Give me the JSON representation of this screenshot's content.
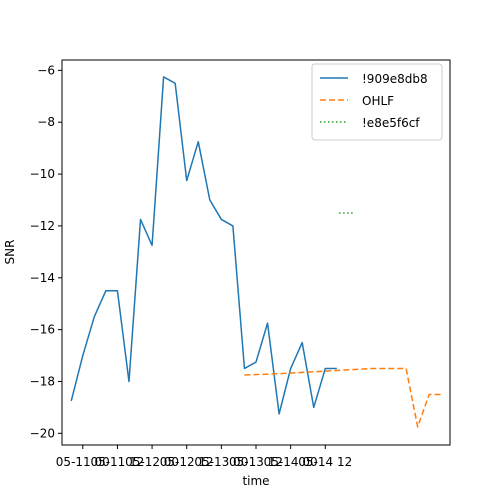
{
  "chart_data": {
    "type": "line",
    "xlabel": "time",
    "ylabel": "SNR",
    "xlim": [
      -0.4,
      16.4
    ],
    "ylim": [
      -20.45,
      -5.6
    ],
    "x_ticks": [
      {
        "x": 0.5,
        "label": "05-11 00"
      },
      {
        "x": 2.0,
        "label": "05-11 12"
      },
      {
        "x": 3.5,
        "label": "05-12 00"
      },
      {
        "x": 5.0,
        "label": "05-12 12"
      },
      {
        "x": 6.5,
        "label": "05-13 00"
      },
      {
        "x": 8.0,
        "label": "05-13 12"
      },
      {
        "x": 9.5,
        "label": "05-14 00"
      },
      {
        "x": 11.0,
        "label": "05-14 12"
      }
    ],
    "y_ticks": [
      -6,
      -8,
      -10,
      -12,
      -14,
      -16,
      -18,
      -20
    ],
    "grid": false,
    "legend_position": "top-right",
    "series": [
      {
        "name": "!909e8db8",
        "color": "#1f77b4",
        "dash": "solid",
        "x": [
          0.0,
          0.5,
          1.0,
          1.5,
          2.0,
          2.5,
          3.0,
          3.5,
          4.0,
          4.5,
          5.0,
          5.5,
          6.0,
          6.5,
          7.0,
          7.5,
          8.0,
          8.5,
          9.0,
          9.5,
          10.0,
          10.5,
          11.0,
          11.5,
          12.0,
          12.5,
          13.0,
          13.5,
          14.0,
          14.5,
          15.0,
          15.5,
          16.0
        ],
        "y": [
          -18.75,
          -17.0,
          -15.5,
          -14.5,
          -14.5,
          -18.0,
          -11.75,
          -12.75,
          -6.25,
          -6.5,
          -10.25,
          -8.75,
          -11.0,
          -11.75,
          -12.0,
          -17.5,
          -17.25,
          -15.75,
          -19.25,
          -17.5,
          -16.5,
          -19.0,
          -17.5,
          -17.5,
          null,
          null,
          null,
          null,
          null,
          null,
          null,
          null,
          null
        ]
      },
      {
        "name": "OHLF",
        "color": "#ff7f0e",
        "dash": "dashed",
        "x": [
          7.5,
          9.0,
          10.0,
          11.0,
          12.0,
          13.0,
          14.5,
          15.0,
          15.5,
          16.0
        ],
        "y": [
          -17.75,
          -17.7,
          -17.65,
          -17.6,
          -17.55,
          -17.5,
          -17.5,
          -19.75,
          -18.5,
          -18.5
        ]
      },
      {
        "name": "!e8e5f6cf",
        "color": "#2ca02c",
        "dash": "dotted",
        "x": [
          11.6,
          12.2
        ],
        "y": [
          -11.5,
          -11.5
        ]
      }
    ]
  }
}
